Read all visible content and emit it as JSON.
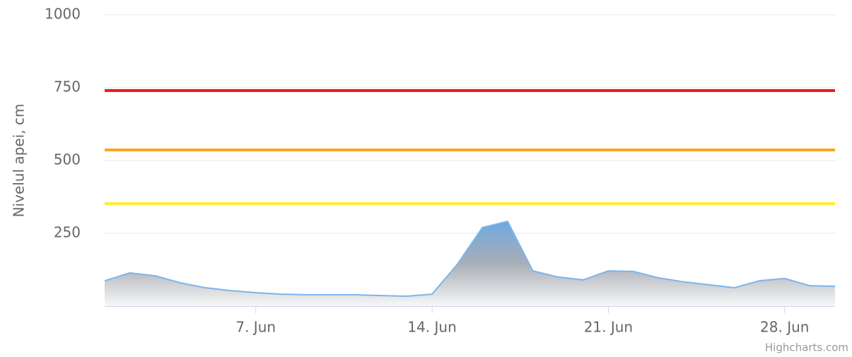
{
  "chart_data": {
    "type": "area",
    "y_axis_label": "Nivelul apei, cm",
    "credits": "Highcharts.com",
    "x": [
      1,
      2,
      3,
      4,
      5,
      6,
      7,
      8,
      9,
      10,
      11,
      12,
      13,
      14,
      15,
      16,
      17,
      18,
      19,
      20,
      21,
      22,
      23,
      24,
      25,
      26,
      27,
      28,
      29,
      30
    ],
    "series": [
      {
        "color": "#7cb5ec",
        "values": [
          87,
          114,
          104,
          80,
          63,
          53,
          46,
          41,
          39,
          39,
          39,
          36,
          34,
          41,
          143,
          270,
          291,
          121,
          100,
          90,
          121,
          119,
          97,
          83,
          73,
          63,
          87,
          95,
          70,
          68
        ]
      }
    ],
    "xlim": [
      1,
      30
    ],
    "xticks": [
      {
        "value": 7,
        "label": "7. Jun"
      },
      {
        "value": 14,
        "label": "14. Jun"
      },
      {
        "value": 21,
        "label": "21. Jun"
      },
      {
        "value": 28,
        "label": "28. Jun"
      }
    ],
    "ylim": [
      0,
      1000
    ],
    "yticks": [
      250,
      500,
      750,
      1000
    ],
    "grid": true,
    "plot_lines": [
      {
        "value": 740,
        "color": "#e41a1c"
      },
      {
        "value": 536,
        "color": "#f5a623"
      },
      {
        "value": 352,
        "color": "#ffee33"
      }
    ]
  }
}
